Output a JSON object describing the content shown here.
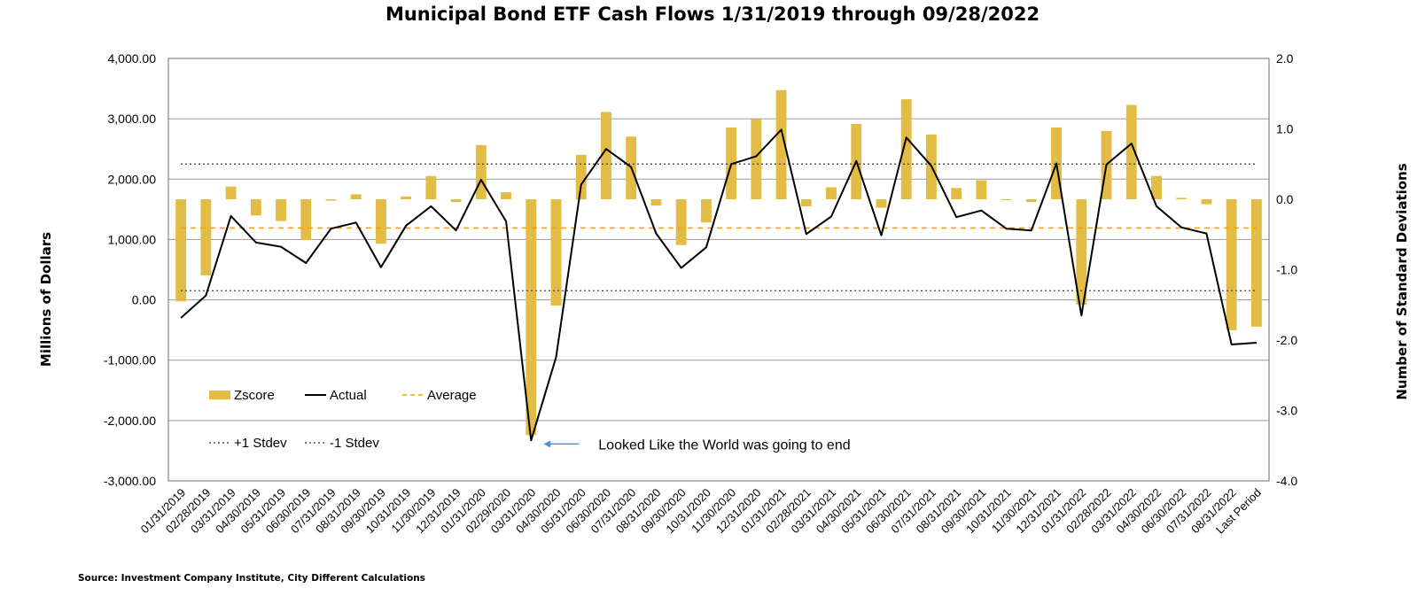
{
  "title": "Municipal Bond ETF Cash Flows 1/31/2019 through 09/28/2022",
  "source": "Source: Investment Company Institute, City Different Calculations",
  "annotation": "Looked Like the World was going to end",
  "chart_data": {
    "type": "bar+line",
    "title": "Municipal Bond ETF Cash Flows 1/31/2019 through 09/28/2022",
    "y_left_label": "Millions of Dollars",
    "y_right_label": "Number of Standard Deviations",
    "y_left_range": [
      -3000,
      4000
    ],
    "y_right_range": [
      -4.0,
      2.0
    ],
    "y_left_ticks": [
      "4,000.00",
      "3,000.00",
      "2,000.00",
      "1,000.00",
      "0.00",
      "-1,000.00",
      "-2,000.00",
      "-3,000.00"
    ],
    "y_right_ticks": [
      "2.0",
      "1.0",
      "0.0",
      "-1.0",
      "-2.0",
      "-3.0",
      "-4.0"
    ],
    "categories": [
      "01/31/2019",
      "02/28/2019",
      "03/31/2019",
      "04/30/2019",
      "05/31/2019",
      "06/30/2019",
      "07/31/2019",
      "08/31/2019",
      "09/30/2019",
      "10/31/2019",
      "11/30/2019",
      "12/31/2019",
      "01/31/2020",
      "02/29/2020",
      "03/31/2020",
      "04/30/2020",
      "05/31/2020",
      "06/30/2020",
      "07/31/2020",
      "08/31/2020",
      "09/30/2020",
      "10/31/2020",
      "11/30/2020",
      "12/31/2020",
      "01/31/2021",
      "02/28/2021",
      "03/31/2021",
      "04/30/2021",
      "05/31/2021",
      "06/30/2021",
      "07/31/2021",
      "08/31/2021",
      "09/30/2021",
      "10/31/2021",
      "11/30/2021",
      "12/31/2021",
      "01/31/2022",
      "02/28/2022",
      "03/31/2022",
      "04/30/2022",
      "06/30/2022",
      "07/31/2022",
      "08/31/2022",
      "Last Period"
    ],
    "series": [
      {
        "name": "Zscore",
        "axis": "right",
        "type": "bar",
        "color": "#E2BC45",
        "values": [
          -1.45,
          -1.08,
          0.18,
          -0.23,
          -0.31,
          -0.58,
          -0.02,
          0.07,
          -0.63,
          0.04,
          0.33,
          -0.04,
          0.77,
          0.1,
          -3.35,
          -1.51,
          0.63,
          1.24,
          0.89,
          -0.09,
          -0.65,
          -0.33,
          1.02,
          1.14,
          1.55,
          -0.1,
          0.17,
          1.07,
          -0.12,
          1.42,
          0.92,
          0.16,
          0.27,
          -0.01,
          -0.04,
          1.02,
          -1.5,
          0.97,
          1.34,
          0.33,
          0.02,
          -0.07,
          -1.86,
          -1.81
        ]
      },
      {
        "name": "Actual",
        "axis": "left",
        "type": "line",
        "color": "#000000",
        "values": [
          -300,
          70,
          1390,
          950,
          880,
          610,
          1180,
          1280,
          540,
          1230,
          1550,
          1150,
          1990,
          1300,
          -2330,
          -950,
          1910,
          2500,
          2200,
          1100,
          530,
          870,
          2250,
          2380,
          2820,
          1090,
          1380,
          2300,
          1070,
          2690,
          2220,
          1370,
          1480,
          1180,
          1150,
          2260,
          -260,
          2240,
          2590,
          1550,
          1200,
          1100,
          -740,
          -710
        ]
      },
      {
        "name": "Average",
        "axis": "left",
        "type": "line",
        "style": "dashed",
        "color": "#F0A800",
        "value": 1190
      },
      {
        "name": "+1 Stdev",
        "axis": "left",
        "type": "line",
        "style": "dotted",
        "color": "#555555",
        "value": 2250
      },
      {
        "name": "-1 Stdev",
        "axis": "left",
        "type": "line",
        "style": "dotted",
        "color": "#555555",
        "value": 150
      }
    ],
    "annotation_index": 14,
    "grid": true,
    "legend_position": "lower-left"
  }
}
